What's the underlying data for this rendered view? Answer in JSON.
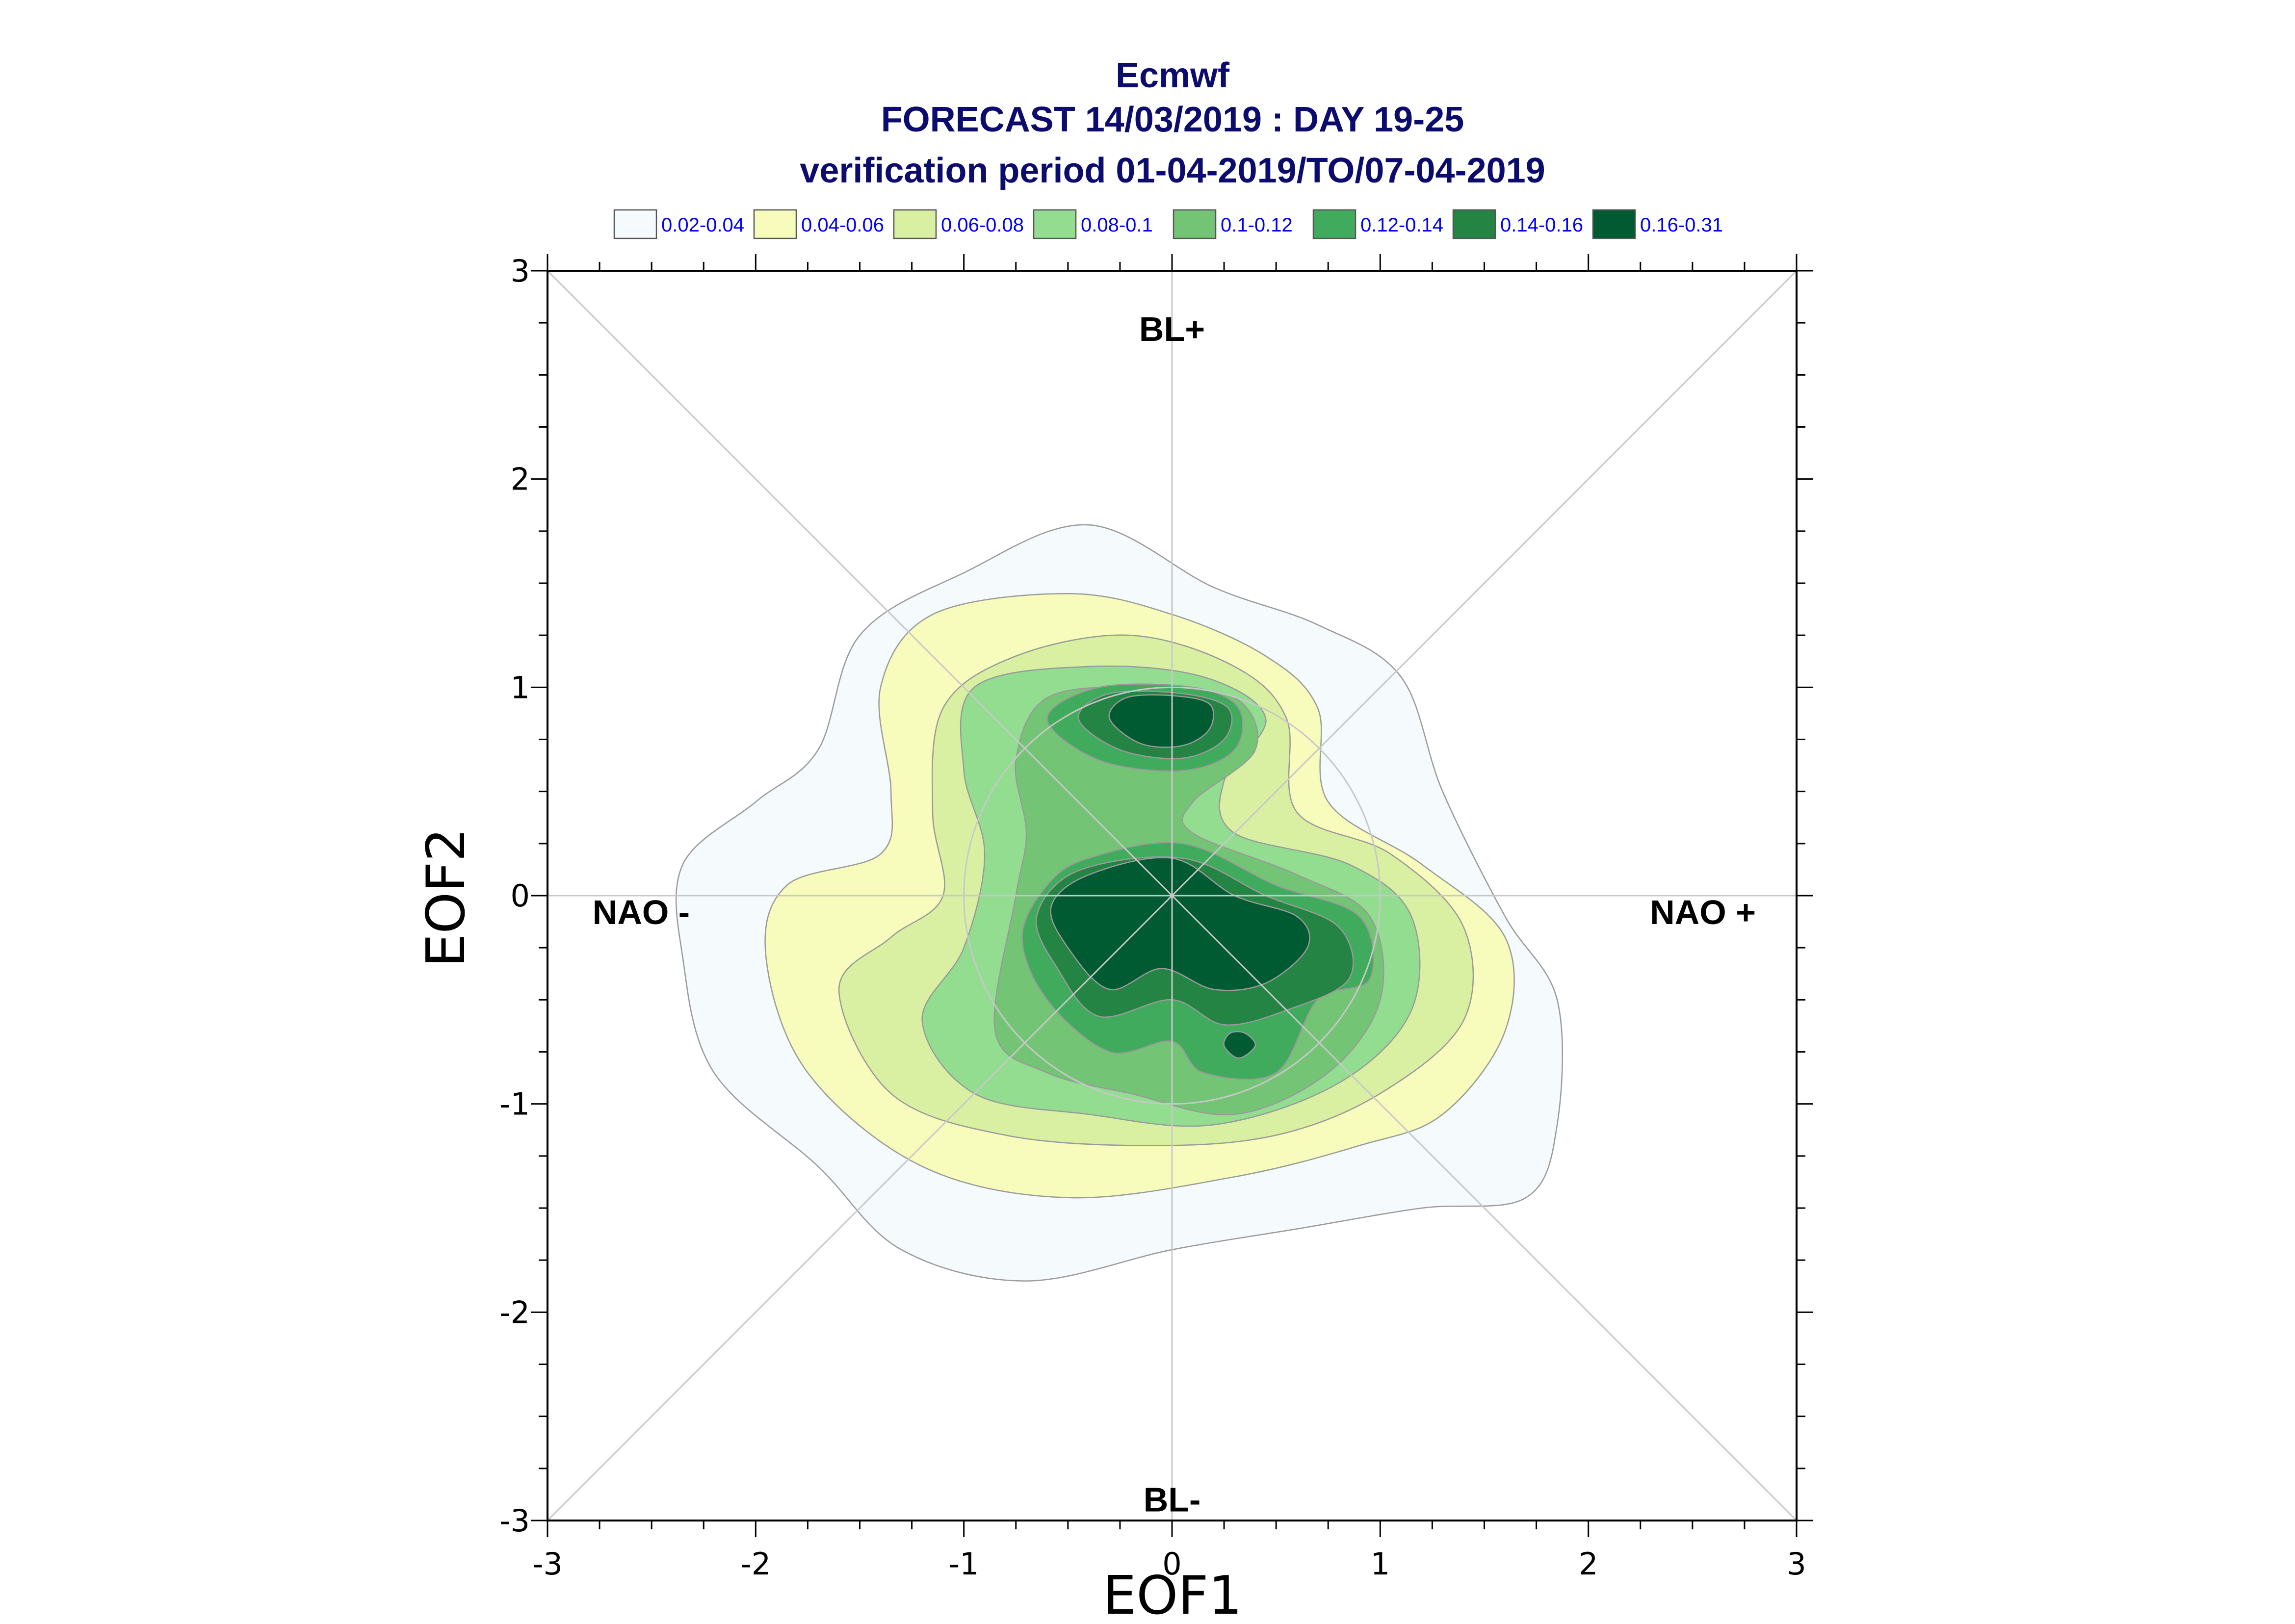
{
  "chart_data": {
    "type": "contour",
    "title_lines": [
      "Ecmwf",
      "FORECAST 14/03/2019 : DAY 19-25",
      "verification period 01-04-2019/TO/07-04-2019"
    ],
    "xlabel": "EOF1",
    "ylabel": "EOF2",
    "xlim": [
      -3,
      3
    ],
    "ylim": [
      -3,
      3
    ],
    "xticks": [
      "-3",
      "-2",
      "-1",
      "0",
      "1",
      "2",
      "3"
    ],
    "yticks": [
      "-3",
      "-2",
      "-1",
      "0",
      "1",
      "2",
      "3"
    ],
    "legend_position": "top",
    "legend": [
      {
        "label": "0.02-0.04",
        "color": "#f5fafc"
      },
      {
        "label": "0.04-0.06",
        "color": "#f7fcbc"
      },
      {
        "label": "0.06-0.08",
        "color": "#d9f0a3"
      },
      {
        "label": "0.08-0.1",
        "color": "#92dd8f"
      },
      {
        "label": "0.1-0.12",
        "color": "#74c476"
      },
      {
        "label": "0.12-0.14",
        "color": "#41ab5d"
      },
      {
        "label": "0.14-0.16",
        "color": "#238443"
      },
      {
        "label": "0.16-0.31",
        "color": "#005a32"
      }
    ],
    "regime_labels": [
      {
        "text": "BL+",
        "x": 0,
        "y": 2.72
      },
      {
        "text": "BL-",
        "x": 0,
        "y": -2.9
      },
      {
        "text": "NAO -",
        "x": -2.55,
        "y": -0.08
      },
      {
        "text": "NAO +",
        "x": 2.55,
        "y": -0.08
      }
    ],
    "reference_circle_radius": 1,
    "contours": [
      {
        "level": 0,
        "points": [
          [
            -2.35,
            -0.3
          ],
          [
            -2.2,
            -0.85
          ],
          [
            -1.7,
            -1.3
          ],
          [
            -1.3,
            -1.7
          ],
          [
            -0.7,
            -1.85
          ],
          [
            0,
            -1.7
          ],
          [
            0.6,
            -1.6
          ],
          [
            1.2,
            -1.5
          ],
          [
            1.7,
            -1.45
          ],
          [
            1.85,
            -1.1
          ],
          [
            1.85,
            -0.5
          ],
          [
            1.6,
            -0.1
          ],
          [
            1.3,
            0.5
          ],
          [
            1.1,
            1.05
          ],
          [
            0.7,
            1.3
          ],
          [
            0.2,
            1.48
          ],
          [
            -0.4,
            1.78
          ],
          [
            -1.0,
            1.55
          ],
          [
            -1.5,
            1.25
          ],
          [
            -1.7,
            0.7
          ],
          [
            -2.0,
            0.45
          ],
          [
            -2.35,
            0.15
          ]
        ]
      },
      {
        "level": 1,
        "points": [
          [
            -1.95,
            -0.3
          ],
          [
            -1.75,
            -0.85
          ],
          [
            -1.2,
            -1.3
          ],
          [
            -0.5,
            -1.45
          ],
          [
            0.3,
            -1.35
          ],
          [
            0.9,
            -1.2
          ],
          [
            1.3,
            -1.05
          ],
          [
            1.6,
            -0.65
          ],
          [
            1.6,
            -0.2
          ],
          [
            1.2,
            0.15
          ],
          [
            0.75,
            0.45
          ],
          [
            0.7,
            0.9
          ],
          [
            0.45,
            1.15
          ],
          [
            0,
            1.35
          ],
          [
            -0.5,
            1.45
          ],
          [
            -1.15,
            1.35
          ],
          [
            -1.4,
            1.0
          ],
          [
            -1.35,
            0.5
          ],
          [
            -1.4,
            0.2
          ],
          [
            -1.85,
            0.05
          ]
        ]
      },
      {
        "level": 2,
        "points": [
          [
            -1.6,
            -0.45
          ],
          [
            -1.35,
            -0.95
          ],
          [
            -0.8,
            -1.15
          ],
          [
            -0.1,
            -1.2
          ],
          [
            0.5,
            -1.15
          ],
          [
            1.0,
            -0.95
          ],
          [
            1.4,
            -0.6
          ],
          [
            1.4,
            -0.15
          ],
          [
            1.05,
            0.2
          ],
          [
            0.6,
            0.4
          ],
          [
            0.55,
            0.85
          ],
          [
            0.3,
            1.1
          ],
          [
            -0.2,
            1.25
          ],
          [
            -0.75,
            1.15
          ],
          [
            -1.1,
            0.9
          ],
          [
            -1.15,
            0.4
          ],
          [
            -1.1,
            0.0
          ],
          [
            -1.35,
            -0.2
          ]
        ]
      },
      {
        "level": 3,
        "points": [
          [
            -1.2,
            -0.6
          ],
          [
            -0.95,
            -0.95
          ],
          [
            -0.4,
            -1.05
          ],
          [
            0.2,
            -1.1
          ],
          [
            0.8,
            -0.9
          ],
          [
            1.15,
            -0.55
          ],
          [
            1.15,
            -0.1
          ],
          [
            0.85,
            0.15
          ],
          [
            0.3,
            0.3
          ],
          [
            0.25,
            0.55
          ],
          [
            0.45,
            0.85
          ],
          [
            0.15,
            1.05
          ],
          [
            -0.4,
            1.1
          ],
          [
            -0.95,
            1.0
          ],
          [
            -1.0,
            0.6
          ],
          [
            -0.9,
            0.2
          ],
          [
            -1.0,
            -0.25
          ]
        ]
      },
      {
        "level": 4,
        "points": [
          [
            -0.85,
            -0.65
          ],
          [
            -0.6,
            -0.85
          ],
          [
            -0.2,
            -0.95
          ],
          [
            0.3,
            -1.05
          ],
          [
            0.75,
            -0.85
          ],
          [
            1.0,
            -0.5
          ],
          [
            0.95,
            -0.1
          ],
          [
            0.6,
            0.1
          ],
          [
            0.1,
            0.3
          ],
          [
            0.1,
            0.45
          ],
          [
            0.4,
            0.7
          ],
          [
            0.3,
            0.95
          ],
          [
            -0.15,
            1.0
          ],
          [
            -0.6,
            0.95
          ],
          [
            -0.75,
            0.65
          ],
          [
            -0.7,
            0.3
          ],
          [
            -0.75,
            0.0
          ]
        ]
      },
      {
        "level": 5,
        "points": [
          [
            -0.6,
            -0.5
          ],
          [
            -0.3,
            -0.75
          ],
          [
            0,
            -0.7
          ],
          [
            0.15,
            -0.85
          ],
          [
            0.5,
            -0.85
          ],
          [
            0.7,
            -0.5
          ],
          [
            0.95,
            -0.4
          ],
          [
            0.9,
            -0.1
          ],
          [
            0.5,
            0.05
          ],
          [
            0.05,
            0.25
          ],
          [
            -0.4,
            0.18
          ],
          [
            -0.6,
            0.05
          ],
          [
            -0.72,
            -0.2
          ]
        ]
      },
      {
        "level": 5,
        "points": [
          [
            -0.6,
            0.85
          ],
          [
            -0.35,
            0.65
          ],
          [
            0.05,
            0.6
          ],
          [
            0.3,
            0.7
          ],
          [
            0.32,
            0.9
          ],
          [
            0.1,
            1.0
          ],
          [
            -0.35,
            1.0
          ]
        ]
      },
      {
        "level": 6,
        "points": [
          [
            -0.55,
            -0.35
          ],
          [
            -0.35,
            -0.58
          ],
          [
            0,
            -0.5
          ],
          [
            0.25,
            -0.62
          ],
          [
            0.55,
            -0.55
          ],
          [
            0.85,
            -0.4
          ],
          [
            0.8,
            -0.15
          ],
          [
            0.45,
            0.0
          ],
          [
            0.05,
            0.18
          ],
          [
            -0.45,
            0.12
          ],
          [
            -0.65,
            -0.1
          ]
        ]
      },
      {
        "level": 6,
        "points": [
          [
            -0.45,
            0.85
          ],
          [
            -0.25,
            0.7
          ],
          [
            0.05,
            0.66
          ],
          [
            0.25,
            0.75
          ],
          [
            0.27,
            0.9
          ],
          [
            0.05,
            0.97
          ],
          [
            -0.3,
            0.97
          ]
        ]
      },
      {
        "level": 7,
        "points": [
          [
            -0.5,
            -0.25
          ],
          [
            -0.3,
            -0.45
          ],
          [
            -0.05,
            -0.35
          ],
          [
            0.2,
            -0.45
          ],
          [
            0.45,
            -0.42
          ],
          [
            0.65,
            -0.25
          ],
          [
            0.6,
            -0.1
          ],
          [
            0.3,
            0.0
          ],
          [
            0.0,
            0.18
          ],
          [
            -0.4,
            0.1
          ],
          [
            -0.58,
            -0.05
          ]
        ]
      },
      {
        "level": 7,
        "points": [
          [
            -0.3,
            0.85
          ],
          [
            -0.15,
            0.73
          ],
          [
            0.05,
            0.72
          ],
          [
            0.18,
            0.8
          ],
          [
            0.18,
            0.92
          ],
          [
            0.0,
            0.96
          ],
          [
            -0.22,
            0.95
          ]
        ]
      },
      {
        "level": 7,
        "points": [
          [
            0.25,
            -0.72
          ],
          [
            0.32,
            -0.78
          ],
          [
            0.4,
            -0.72
          ],
          [
            0.35,
            -0.66
          ],
          [
            0.28,
            -0.66
          ]
        ]
      }
    ]
  }
}
